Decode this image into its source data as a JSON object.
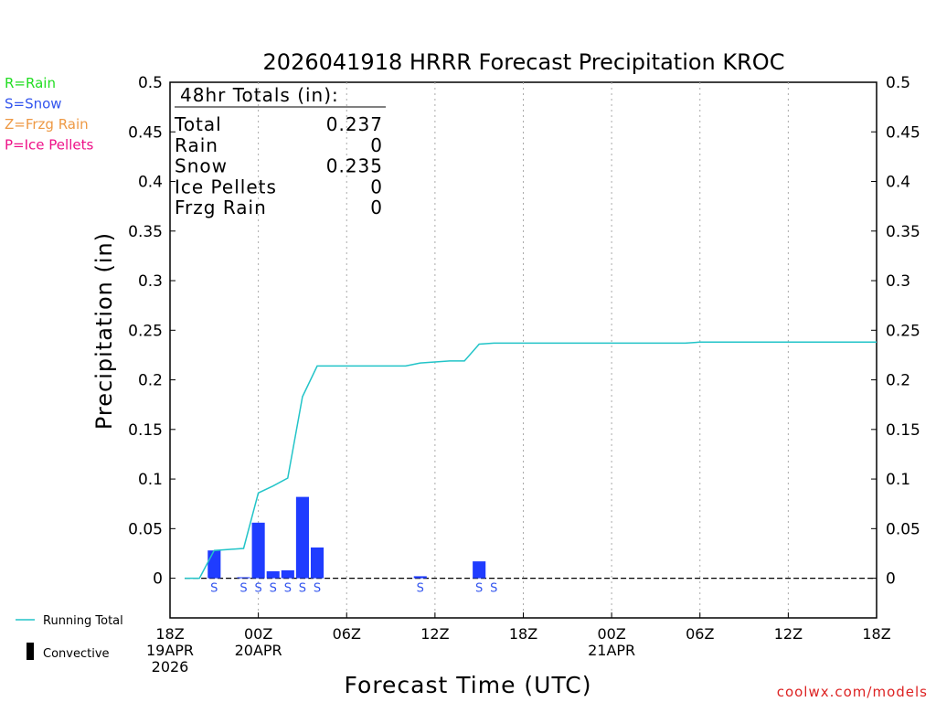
{
  "chart_data": {
    "type": "bar",
    "title": "2026041918 HRRR Forecast Precipitation KROC",
    "xlabel": "Forecast Time (UTC)",
    "ylabel": "Precipitation (in)",
    "ylim": [
      -0.04,
      0.5
    ],
    "xlim_hours": [
      0,
      48
    ],
    "y_ticks": [
      0,
      0.05,
      0.1,
      0.15,
      0.2,
      0.25,
      0.3,
      0.35,
      0.4,
      0.45,
      0.5
    ],
    "y_tick_labels": [
      "0",
      "0.05",
      "0.1",
      "0.15",
      "0.2",
      "0.25",
      "0.3",
      "0.35",
      "0.4",
      "0.45",
      "0.5"
    ],
    "x_ticks": [
      {
        "hour": 0,
        "lines": [
          "18Z",
          "19APR",
          "2026"
        ]
      },
      {
        "hour": 6,
        "lines": [
          "00Z",
          "20APR"
        ]
      },
      {
        "hour": 12,
        "lines": [
          "06Z"
        ]
      },
      {
        "hour": 18,
        "lines": [
          "12Z"
        ]
      },
      {
        "hour": 24,
        "lines": [
          "18Z"
        ]
      },
      {
        "hour": 30,
        "lines": [
          "00Z",
          "21APR"
        ]
      },
      {
        "hour": 36,
        "lines": [
          "06Z"
        ]
      },
      {
        "hour": 42,
        "lines": [
          "12Z"
        ]
      },
      {
        "hour": 48,
        "lines": [
          "18Z"
        ]
      }
    ],
    "bars": [
      {
        "hour": 3,
        "value": 0.028,
        "type": "S"
      },
      {
        "hour": 5,
        "value": 0.001,
        "type": "S"
      },
      {
        "hour": 6,
        "value": 0.056,
        "type": "S"
      },
      {
        "hour": 7,
        "value": 0.007,
        "type": "S"
      },
      {
        "hour": 8,
        "value": 0.008,
        "type": "S"
      },
      {
        "hour": 9,
        "value": 0.082,
        "type": "S"
      },
      {
        "hour": 10,
        "value": 0.031,
        "type": "S"
      },
      {
        "hour": 17,
        "value": 0.002,
        "type": "S"
      },
      {
        "hour": 21,
        "value": 0.017,
        "type": "S"
      },
      {
        "hour": 22,
        "value": 0.0,
        "type": "S"
      }
    ],
    "running_total": {
      "name": "Running Total",
      "points": [
        [
          1,
          0
        ],
        [
          2,
          0
        ],
        [
          3,
          0.028
        ],
        [
          4,
          0.029
        ],
        [
          5,
          0.03
        ],
        [
          6,
          0.086
        ],
        [
          7,
          0.093
        ],
        [
          8,
          0.101
        ],
        [
          9,
          0.183
        ],
        [
          10,
          0.214
        ],
        [
          11,
          0.214
        ],
        [
          12,
          0.214
        ],
        [
          13,
          0.214
        ],
        [
          14,
          0.214
        ],
        [
          15,
          0.214
        ],
        [
          16,
          0.214
        ],
        [
          17,
          0.217
        ],
        [
          18,
          0.218
        ],
        [
          19,
          0.219
        ],
        [
          20,
          0.219
        ],
        [
          21,
          0.236
        ],
        [
          22,
          0.237
        ],
        [
          24,
          0.237
        ],
        [
          30,
          0.237
        ],
        [
          35,
          0.237
        ],
        [
          36,
          0.238
        ],
        [
          42,
          0.238
        ],
        [
          48,
          0.238
        ]
      ]
    },
    "legend": [
      {
        "label": "R=Rain",
        "color": "#22dd22"
      },
      {
        "label": "S=Snow",
        "color": "#3355ee"
      },
      {
        "label": "Z=Frzg Rain",
        "color": "#ee9944"
      },
      {
        "label": "P=Ice Pellets",
        "color": "#ee1188"
      }
    ],
    "bottom_legend": {
      "running_total_label": "Running Total",
      "convective_label": "Convective"
    },
    "totals": {
      "heading": "48hr Totals (in):",
      "rows": [
        {
          "label": "Total",
          "value": "0.237"
        },
        {
          "label": "Rain",
          "value": "0"
        },
        {
          "label": "Snow",
          "value": "0.235"
        },
        {
          "label": "Ice Pellets",
          "value": "0"
        },
        {
          "label": "Frzg Rain",
          "value": "0"
        }
      ]
    },
    "source": "coolwx.com/models",
    "colors": {
      "bar": "#1f3cff",
      "line": "#22c4c8",
      "snow_marker": "#3355ee",
      "source": "#dd2222",
      "grid": "#aaaaaa",
      "axis": "#000000"
    }
  }
}
